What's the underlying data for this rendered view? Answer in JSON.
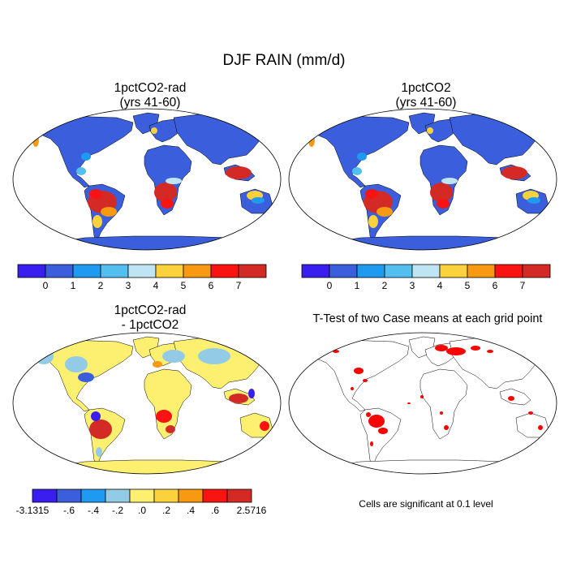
{
  "title": "DJF RAIN (mm/d)",
  "panels": [
    {
      "id": "p1",
      "title_line1": "1pctCO2-rad",
      "title_line2": "(yrs 41-60)"
    },
    {
      "id": "p2",
      "title_line1": "1pctCO2",
      "title_line2": "(yrs 41-60)"
    },
    {
      "id": "p3",
      "title_line1": "1pctCO2-rad",
      "title_line2": "- 1pctCO2"
    },
    {
      "id": "p4",
      "title_line1": "T-Test of two Case means at each grid point",
      "title_line2": ""
    }
  ],
  "colorbars": {
    "rain": {
      "colors": [
        "#3a1ef0",
        "#3b5fdc",
        "#1e9bf0",
        "#52bfee",
        "#bfe5f5",
        "#fbd23c",
        "#f79a12",
        "#f91412",
        "#d42a26"
      ],
      "labels": [
        "0",
        "1",
        "2",
        "3",
        "4",
        "5",
        "6",
        "7"
      ]
    },
    "diff": {
      "colors": [
        "#3a1ef0",
        "#3b5fdc",
        "#1e9bf0",
        "#93cbe6",
        "#fdf070",
        "#fbd23c",
        "#f79a12",
        "#f91412",
        "#d42a26"
      ],
      "labels": [
        "-3.1315",
        "-.6",
        "-.4",
        "-.2",
        ".0",
        ".2",
        ".4",
        ".6",
        "2.5716"
      ]
    }
  },
  "significance_note": "Cells are significant at 0.1 level",
  "colors": {
    "significant": "#ff0000",
    "ocean": "#ffffff",
    "land_outline": "#000000"
  }
}
